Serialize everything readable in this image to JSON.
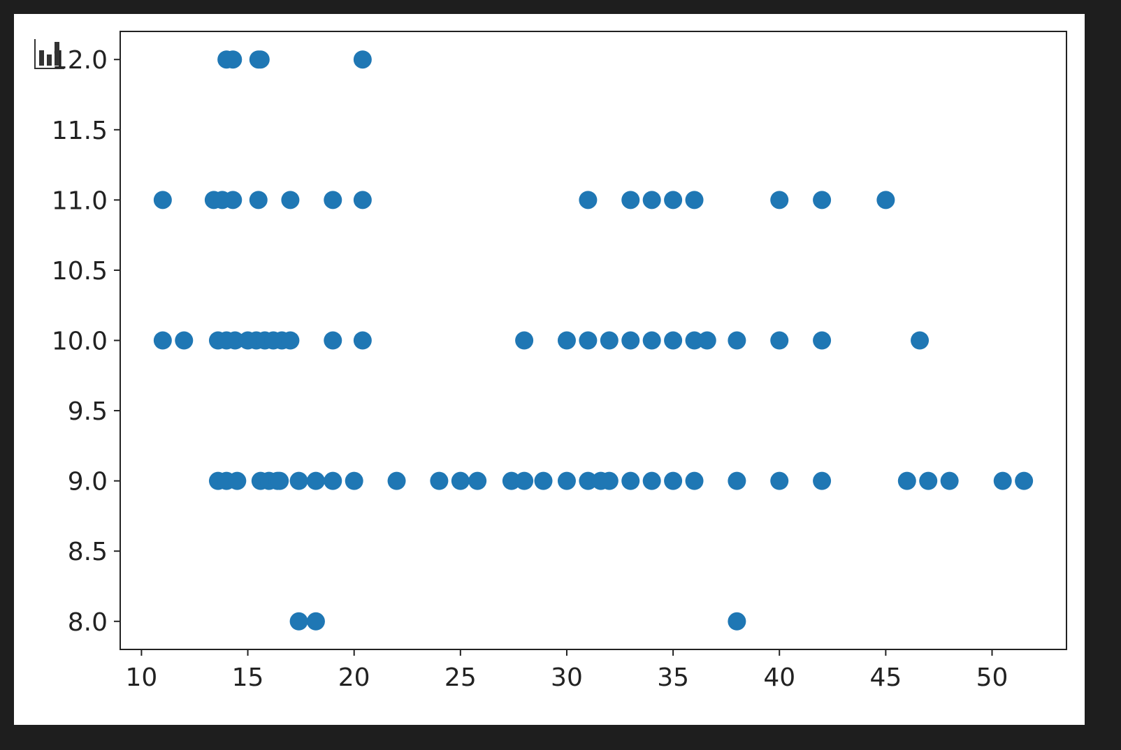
{
  "icons": {
    "corner": "bar-chart-icon"
  },
  "chart_data": {
    "type": "scatter",
    "title": "",
    "xlabel": "",
    "ylabel": "",
    "xlim": [
      9.0,
      53.5
    ],
    "ylim": [
      7.8,
      12.2
    ],
    "xticks": [
      "10",
      "15",
      "20",
      "25",
      "30",
      "35",
      "40",
      "45",
      "50"
    ],
    "yticks": [
      "8.0",
      "8.5",
      "9.0",
      "9.5",
      "10.0",
      "10.5",
      "11.0",
      "11.5",
      "12.0"
    ],
    "grid": false,
    "marker_color": "#1f77b4",
    "points": [
      [
        14.0,
        12
      ],
      [
        14.3,
        12
      ],
      [
        15.5,
        12
      ],
      [
        15.6,
        12
      ],
      [
        20.4,
        12
      ],
      [
        11,
        11
      ],
      [
        13.4,
        11
      ],
      [
        13.8,
        11
      ],
      [
        14.3,
        11
      ],
      [
        15.5,
        11
      ],
      [
        17,
        11
      ],
      [
        19,
        11
      ],
      [
        20.4,
        11
      ],
      [
        31,
        11
      ],
      [
        33,
        11
      ],
      [
        34,
        11
      ],
      [
        35,
        11
      ],
      [
        36,
        11
      ],
      [
        40,
        11
      ],
      [
        42,
        11
      ],
      [
        45,
        11
      ],
      [
        11,
        10
      ],
      [
        12,
        10
      ],
      [
        13.6,
        10
      ],
      [
        14,
        10
      ],
      [
        14.4,
        10
      ],
      [
        15,
        10
      ],
      [
        15.4,
        10
      ],
      [
        15.8,
        10
      ],
      [
        16.2,
        10
      ],
      [
        16.6,
        10
      ],
      [
        17,
        10
      ],
      [
        19,
        10
      ],
      [
        20.4,
        10
      ],
      [
        28,
        10
      ],
      [
        30,
        10
      ],
      [
        31,
        10
      ],
      [
        32,
        10
      ],
      [
        33,
        10
      ],
      [
        34,
        10
      ],
      [
        35,
        10
      ],
      [
        36,
        10
      ],
      [
        36.6,
        10
      ],
      [
        38,
        10
      ],
      [
        40,
        10
      ],
      [
        42,
        10
      ],
      [
        46.6,
        10
      ],
      [
        13.6,
        9
      ],
      [
        14,
        9
      ],
      [
        14.5,
        9
      ],
      [
        15.6,
        9
      ],
      [
        16,
        9
      ],
      [
        16.4,
        9
      ],
      [
        16.5,
        9
      ],
      [
        17.4,
        9
      ],
      [
        18.2,
        9
      ],
      [
        19,
        9
      ],
      [
        20,
        9
      ],
      [
        22,
        9
      ],
      [
        24,
        9
      ],
      [
        25,
        9
      ],
      [
        25.8,
        9
      ],
      [
        27.4,
        9
      ],
      [
        28,
        9
      ],
      [
        28.9,
        9
      ],
      [
        30,
        9
      ],
      [
        31,
        9
      ],
      [
        31.6,
        9
      ],
      [
        32,
        9
      ],
      [
        33,
        9
      ],
      [
        34,
        9
      ],
      [
        35,
        9
      ],
      [
        36,
        9
      ],
      [
        38,
        9
      ],
      [
        40,
        9
      ],
      [
        42,
        9
      ],
      [
        46,
        9
      ],
      [
        47,
        9
      ],
      [
        48,
        9
      ],
      [
        50.5,
        9
      ],
      [
        51.5,
        9
      ],
      [
        17.4,
        8
      ],
      [
        18.2,
        8
      ],
      [
        38,
        8
      ]
    ]
  }
}
